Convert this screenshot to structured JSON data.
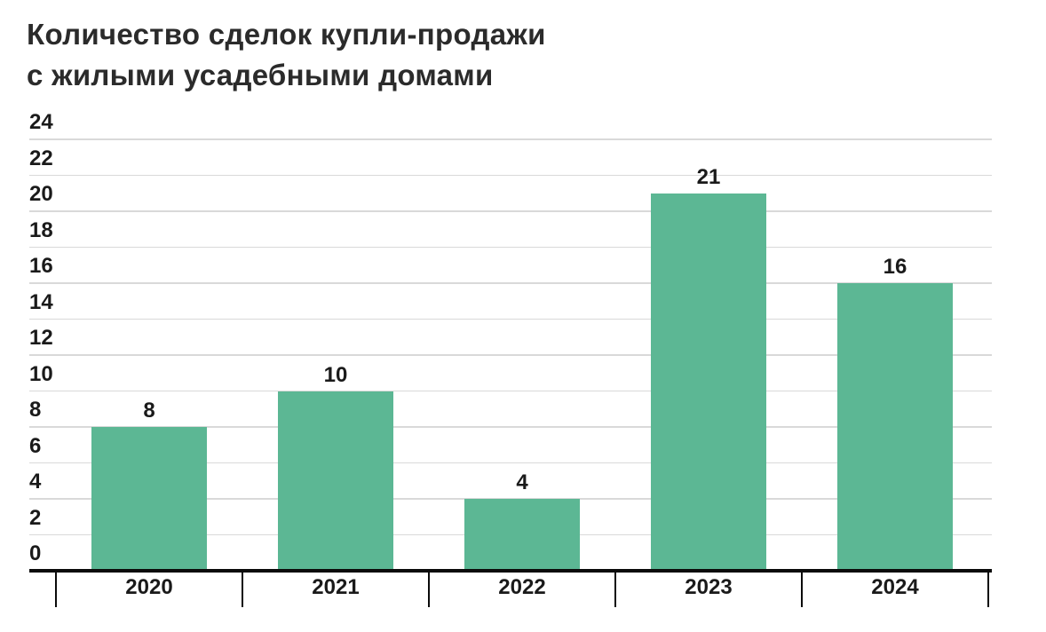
{
  "page": {
    "background": "#ffffff"
  },
  "chart_data": {
    "type": "bar",
    "title": "Количество сделок купли-продажи с жилыми усадебными домами",
    "title_lines": [
      "Количество сделок купли-продажи",
      "с жилыми усадебными домами"
    ],
    "categories": [
      "2020",
      "2021",
      "2022",
      "2023",
      "2024"
    ],
    "values": [
      8,
      10,
      4,
      21,
      16
    ],
    "value_labels": [
      "8",
      "10",
      "4",
      "21",
      "16"
    ],
    "xlabel": "",
    "ylabel": "",
    "ylim": [
      0,
      24
    ],
    "ytick_step": 2,
    "yticks": [
      0,
      2,
      4,
      6,
      8,
      10,
      12,
      14,
      16,
      18,
      20,
      22,
      24
    ],
    "grid": "horizontal",
    "legend": "none",
    "colors": {
      "bar": "#5cb794",
      "title_text": "#2b2b2b",
      "number_text": "#1a1a1a",
      "gridline": "#d9d9d9",
      "axis_line": "#0b0b0b",
      "background": "#ffffff"
    }
  }
}
